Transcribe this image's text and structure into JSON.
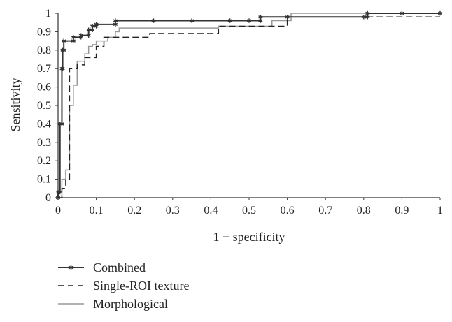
{
  "chart_data": {
    "type": "line",
    "xlabel": "1 − specificity",
    "ylabel": "Sensitivity",
    "xlim": [
      0,
      1
    ],
    "ylim": [
      0,
      1
    ],
    "xticks": [
      0,
      0.1,
      0.2,
      0.3,
      0.4,
      0.5,
      0.6,
      0.7,
      0.8,
      0.9,
      1
    ],
    "yticks": [
      0,
      0.1,
      0.2,
      0.3,
      0.4,
      0.5,
      0.6,
      0.7,
      0.8,
      0.9,
      1
    ],
    "xtick_labels": [
      "0",
      "0.1",
      "0.2",
      "0.3",
      "0.4",
      "0.5",
      "0.6",
      "0.7",
      "0.8",
      "0.9",
      "1"
    ],
    "ytick_labels": [
      "0",
      "0.1",
      "0.2",
      "0.3",
      "0.4",
      "0.5",
      "0.6",
      "0.7",
      "0.8",
      "0.9",
      "1"
    ],
    "grid": false,
    "legend_position": "bottom-left",
    "series": [
      {
        "name": "Combined",
        "color": "#333333",
        "style": "solid-star",
        "x": [
          0,
          0,
          0.005,
          0.005,
          0.01,
          0.01,
          0.012,
          0.012,
          0.015,
          0.015,
          0.04,
          0.04,
          0.06,
          0.06,
          0.08,
          0.08,
          0.09,
          0.09,
          0.1,
          0.1,
          0.15,
          0.15,
          0.25,
          0.35,
          0.45,
          0.5,
          0.53,
          0.53,
          0.6,
          0.8,
          0.81,
          0.81,
          0.9,
          1.0
        ],
        "y": [
          0,
          0.03,
          0.03,
          0.4,
          0.4,
          0.7,
          0.7,
          0.8,
          0.8,
          0.85,
          0.85,
          0.87,
          0.87,
          0.88,
          0.88,
          0.91,
          0.91,
          0.93,
          0.93,
          0.94,
          0.94,
          0.96,
          0.96,
          0.96,
          0.96,
          0.96,
          0.96,
          0.98,
          0.98,
          0.98,
          0.98,
          1.0,
          1.0,
          1.0
        ]
      },
      {
        "name": "Single-ROI texture",
        "color": "#222222",
        "style": "dashed",
        "x": [
          0,
          0.01,
          0.01,
          0.02,
          0.02,
          0.03,
          0.03,
          0.05,
          0.05,
          0.07,
          0.07,
          0.1,
          0.1,
          0.12,
          0.12,
          0.16,
          0.16,
          0.24,
          0.24,
          0.42,
          0.42,
          0.6,
          0.6,
          1.0
        ],
        "y": [
          0,
          0,
          0.05,
          0.05,
          0.1,
          0.1,
          0.7,
          0.7,
          0.72,
          0.72,
          0.76,
          0.76,
          0.82,
          0.82,
          0.87,
          0.87,
          0.87,
          0.87,
          0.89,
          0.89,
          0.93,
          0.93,
          0.98,
          0.98
        ]
      },
      {
        "name": "Morphological",
        "color": "#999999",
        "style": "solid",
        "x": [
          0,
          0.01,
          0.01,
          0.02,
          0.02,
          0.03,
          0.03,
          0.04,
          0.04,
          0.05,
          0.05,
          0.07,
          0.07,
          0.08,
          0.08,
          0.09,
          0.09,
          0.1,
          0.1,
          0.11,
          0.11,
          0.13,
          0.13,
          0.15,
          0.15,
          0.16,
          0.16,
          0.42,
          0.42,
          0.56,
          0.56,
          0.61,
          0.61,
          1.0
        ],
        "y": [
          0,
          0,
          0.1,
          0.1,
          0.15,
          0.15,
          0.5,
          0.5,
          0.61,
          0.61,
          0.74,
          0.74,
          0.78,
          0.78,
          0.82,
          0.82,
          0.83,
          0.83,
          0.85,
          0.85,
          0.85,
          0.85,
          0.87,
          0.87,
          0.9,
          0.9,
          0.92,
          0.92,
          0.93,
          0.93,
          0.96,
          0.96,
          1.0,
          1.0
        ]
      }
    ]
  }
}
